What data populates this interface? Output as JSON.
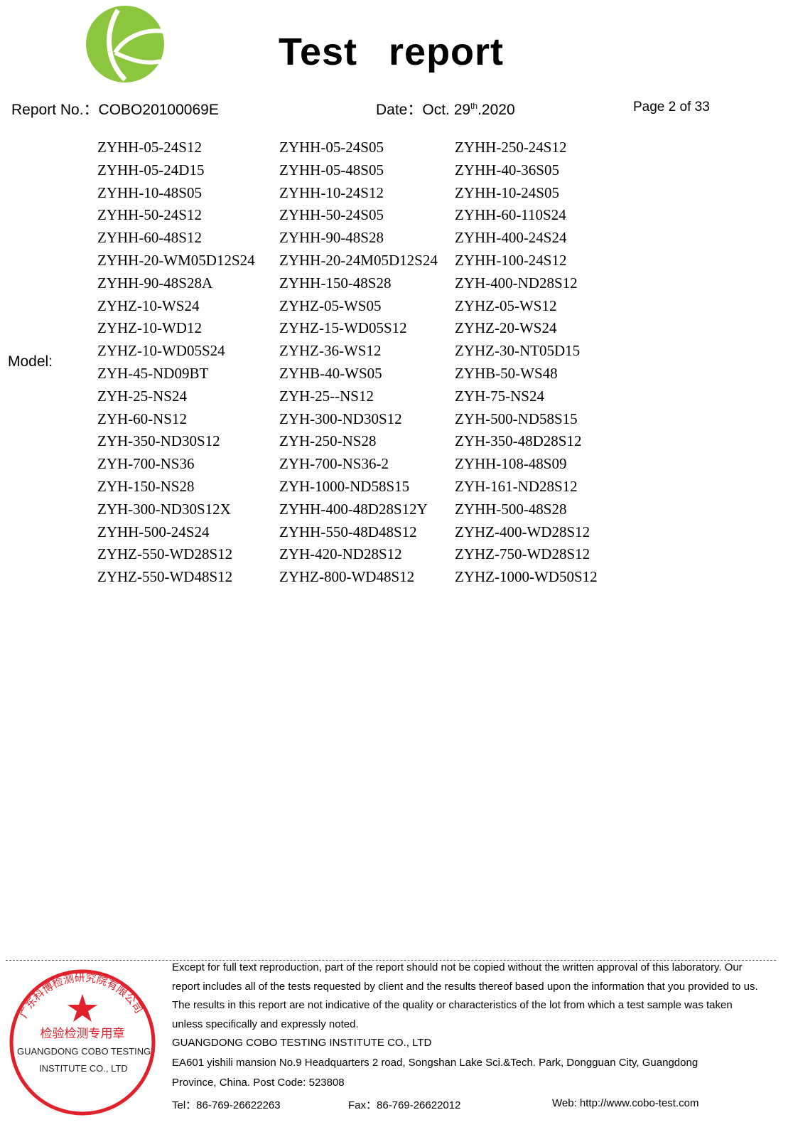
{
  "header": {
    "title": "Test   report",
    "report_no_label": "Report No.：",
    "report_no": "COBO20100069E",
    "date_label": "Date：",
    "date_prefix": "Oct. 29",
    "date_sup": "th",
    "date_suffix": ".2020",
    "page": "Page 2 of 33"
  },
  "model_label": "Model:",
  "models": [
    [
      "ZYHH-05-24S12",
      "ZYHH-05-24S05",
      "ZYHH-250-24S12"
    ],
    [
      "ZYHH-05-24D15",
      "ZYHH-05-48S05",
      "ZYHH-40-36S05"
    ],
    [
      "ZYHH-10-48S05",
      "ZYHH-10-24S12",
      "ZYHH-10-24S05"
    ],
    [
      "ZYHH-50-24S12",
      "ZYHH-50-24S05",
      "ZYHH-60-110S24"
    ],
    [
      "ZYHH-60-48S12",
      "ZYHH-90-48S28",
      "ZYHH-400-24S24"
    ],
    [
      "ZYHH-20-WM05D12S24",
      "ZYHH-20-24M05D12S24",
      "ZYHH-100-24S12"
    ],
    [
      "ZYHH-90-48S28A",
      "ZYHH-150-48S28",
      "ZYH-400-ND28S12"
    ],
    [
      "ZYHZ-10-WS24",
      "ZYHZ-05-WS05",
      "ZYHZ-05-WS12"
    ],
    [
      "ZYHZ-10-WD12",
      "ZYHZ-15-WD05S12",
      "ZYHZ-20-WS24"
    ],
    [
      "ZYHZ-10-WD05S24",
      "ZYHZ-36-WS12",
      "ZYHZ-30-NT05D15"
    ],
    [
      "ZYH-45-ND09BT",
      "ZYHB-40-WS05",
      "ZYHB-50-WS48"
    ],
    [
      "ZYH-25-NS24",
      "ZYH-25--NS12",
      "ZYH-75-NS24"
    ],
    [
      "ZYH-60-NS12",
      "ZYH-300-ND30S12",
      "ZYH-500-ND58S15"
    ],
    [
      "ZYH-350-ND30S12",
      "ZYH-250-NS28",
      "ZYH-350-48D28S12"
    ],
    [
      "ZYH-700-NS36",
      "ZYH-700-NS36-2",
      "ZYHH-108-48S09"
    ],
    [
      "ZYH-150-NS28",
      "ZYH-1000-ND58S15",
      "ZYH-161-ND28S12"
    ],
    [
      "ZYH-300-ND30S12X",
      "ZYHH-400-48D28S12Y",
      "ZYHH-500-48S28"
    ],
    [
      "ZYHH-500-24S24",
      "ZYHH-550-48D48S12",
      "ZYHZ-400-WD28S12"
    ],
    [
      "ZYHZ-550-WD28S12",
      "ZYH-420-ND28S12",
      "ZYHZ-750-WD28S12"
    ],
    [
      "ZYHZ-550-WD48S12",
      "ZYHZ-800-WD48S12",
      "ZYHZ-1000-WD50S12"
    ]
  ],
  "footer": {
    "lines": [
      "Except for full text reproduction, part of the report should not be copied without the written approval of this laboratory. Our",
      "report includes all of the tests requested by client and the results thereof based upon the information that you provided to us.",
      "The results in this report are not indicative of the quality or characteristics of the lot from which a test sample was taken",
      "unless specifically and expressly noted.",
      "GUANGDONG COBO TESTING INSTITUTE CO., LTD",
      "EA601 yishili mansion No.9 Headquarters 2 road, Songshan Lake Sci.&Tech. Park, Dongguan City, Guangdong",
      "Province, China. Post Code: 523808"
    ],
    "tel": "Tel：86-769-26622263",
    "fax": "Fax：86-769-26622012",
    "web": "Web: http://www.cobo-test.com"
  },
  "stamp": {
    "ring_text": "广东科博检测研究院有限公司",
    "center_text": "检验检测专用章",
    "bottom_ring_text": "GUANGDONG COBO TESTING INSTITUTE CO., LTD",
    "overlay_line1": "GUANGDONG COBO TESTING",
    "overlay_line2": "INSTITUTE CO., LTD",
    "color": "#e0202a"
  },
  "colors": {
    "logo_green": "#8cc63f"
  }
}
